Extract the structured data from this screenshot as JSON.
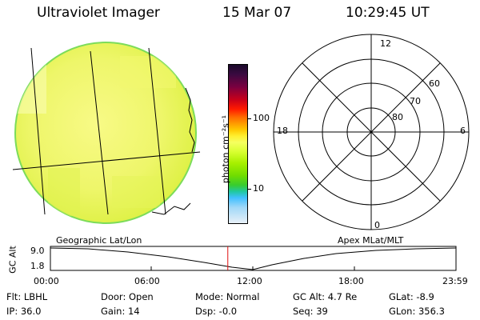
{
  "header": {
    "instrument": "Ultraviolet Imager",
    "date": "15 Mar 07",
    "time": "10:29:45 UT"
  },
  "colorbar": {
    "ticks": [
      "100",
      "10"
    ],
    "unit_label": "photon cm⁻²s⁻¹",
    "colors_top_to_bottom": [
      "#1a0a2a",
      "#3a0a40",
      "#7a0040",
      "#c8001a",
      "#ff1a00",
      "#ff6a00",
      "#ff9a00",
      "#ffc800",
      "#fff030",
      "#f5ff60",
      "#d8ff30",
      "#a8f000",
      "#70dc00",
      "#38cc30",
      "#20c8a0",
      "#40c0ff",
      "#a0d8f8",
      "#e8f0f8"
    ]
  },
  "polar_plot": {
    "mlt_labels": {
      "top": "12",
      "left": "18",
      "right": "6",
      "bottom": "0"
    },
    "lat_labels": [
      "60",
      "70",
      "80"
    ]
  },
  "timeline": {
    "left_title": "Geographic Lat/Lon",
    "right_title": "Apex MLat/MLT",
    "axis_label": "GC Alt",
    "y_ticks": [
      "9.0",
      "1.8"
    ],
    "x_ticks": [
      "00:00",
      "06:00",
      "12:00",
      "18:00",
      "23:59"
    ],
    "current_time_fraction": 0.4374
  },
  "status": {
    "row1": {
      "flt": "Flt: LBHL",
      "door": "Door: Open",
      "mode": "Mode: Normal",
      "gcalt": "GC Alt: 4.7 Re",
      "glat": "GLat:  -8.9"
    },
    "row2": {
      "ip": "IP: 36.0",
      "gain": "Gain: 14",
      "dsp": "Dsp:   -0.0",
      "seq": "Seq: 39",
      "glon": "GLon: 356.3"
    }
  }
}
